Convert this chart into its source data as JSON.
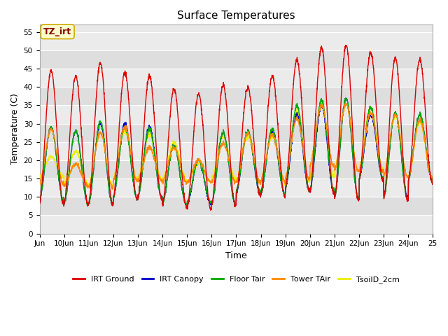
{
  "title": "Surface Temperatures",
  "xlabel": "Time",
  "ylabel": "Temperature (C)",
  "ylim": [
    0,
    57
  ],
  "yticks": [
    0,
    5,
    10,
    15,
    20,
    25,
    30,
    35,
    40,
    45,
    50,
    55
  ],
  "fig_facecolor": "#ffffff",
  "plot_facecolor": "#e8e8e8",
  "annotation_text": "TZ_irt",
  "annotation_bg": "#ffffcc",
  "annotation_border": "#ccaa00",
  "legend_entries": [
    "IRT Ground",
    "IRT Canopy",
    "Floor Tair",
    "Tower TAir",
    "TsoilD_2cm"
  ],
  "line_colors": [
    "#dd0000",
    "#0000cc",
    "#00aa00",
    "#ff8800",
    "#eeee00"
  ],
  "n_days": 16,
  "start_day": 9,
  "pts_per_day": 144,
  "irt_ground_peaks": [
    44.5,
    43.0,
    46.5,
    44.0,
    43.0,
    39.5,
    38.0,
    40.5,
    40.0,
    43.0,
    47.5,
    50.8,
    51.5,
    49.5,
    48.0,
    47.5
  ],
  "irt_ground_mins": [
    8.0,
    8.0,
    8.0,
    9.5,
    9.5,
    7.5,
    6.5,
    7.5,
    10.5,
    10.5,
    12.0,
    11.0,
    9.0,
    14.5,
    9.0,
    14.0
  ],
  "canopy_peaks": [
    29.0,
    28.0,
    30.0,
    30.0,
    29.0,
    24.0,
    20.0,
    27.5,
    28.0,
    28.0,
    32.5,
    35.0,
    37.0,
    32.5,
    33.0,
    32.5
  ],
  "canopy_mins": [
    9.0,
    8.0,
    8.0,
    9.5,
    10.0,
    8.0,
    8.0,
    8.0,
    11.0,
    11.0,
    12.0,
    11.5,
    9.5,
    15.0,
    10.0,
    14.5
  ],
  "floor_peaks": [
    29.0,
    28.0,
    30.5,
    29.0,
    28.5,
    24.0,
    20.0,
    27.5,
    28.0,
    28.5,
    35.0,
    36.5,
    37.0,
    34.5,
    33.0,
    32.5
  ],
  "floor_mins": [
    9.0,
    8.0,
    8.0,
    9.5,
    10.0,
    8.0,
    8.5,
    8.0,
    11.5,
    11.0,
    12.0,
    12.0,
    9.5,
    15.0,
    9.5,
    14.5
  ],
  "tower_peaks": [
    28.5,
    19.0,
    27.5,
    29.0,
    23.5,
    23.5,
    20.0,
    24.5,
    27.5,
    27.0,
    31.5,
    35.0,
    35.5,
    33.0,
    32.5,
    31.0
  ],
  "tower_mins": [
    13.5,
    13.0,
    12.5,
    14.5,
    14.5,
    14.0,
    14.0,
    14.0,
    14.0,
    14.5,
    15.0,
    18.5,
    17.0,
    17.0,
    15.5,
    15.0
  ],
  "soil_peaks": [
    21.0,
    22.5,
    27.5,
    28.0,
    27.0,
    25.0,
    19.0,
    26.5,
    26.5,
    26.5,
    33.5,
    35.5,
    35.5,
    34.5,
    32.0,
    30.5
  ],
  "soil_mins": [
    15.5,
    13.5,
    13.0,
    15.0,
    15.0,
    14.5,
    14.0,
    15.0,
    14.0,
    14.0,
    14.5,
    15.5,
    17.0,
    17.5,
    15.5,
    15.0
  ],
  "grid_colors": [
    "#ffffff",
    "#d8d8d8"
  ],
  "xlim": [
    0,
    16
  ]
}
